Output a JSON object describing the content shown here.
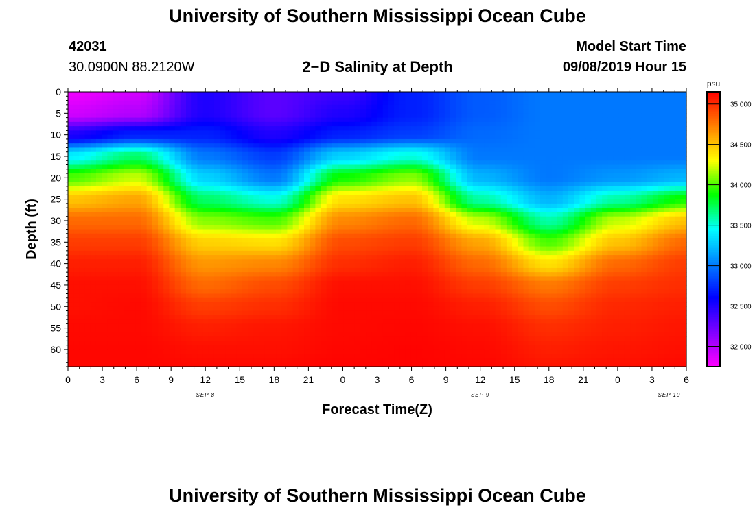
{
  "header": {
    "title": "University of Southern Mississippi Ocean Cube",
    "station_id": "42031",
    "station_coords": "30.0900N 88.2120W",
    "plot_title": "2−D Salinity at Depth",
    "model_label": "Model Start Time",
    "model_time": "09/08/2019 Hour 15"
  },
  "footer": {
    "title": "University of Southern Mississippi Ocean Cube"
  },
  "chart_data": {
    "type": "heatmap",
    "title": "2−D Salinity at Depth",
    "xlabel": "Forecast Time(Z)",
    "ylabel": "Depth (ft)",
    "x_hours_range": [
      0,
      54
    ],
    "x_hour_ticks": [
      0,
      3,
      6,
      9,
      12,
      15,
      18,
      21,
      24,
      27,
      30,
      33,
      36,
      39,
      42,
      45,
      48,
      51,
      54
    ],
    "x_tick_labels": [
      "0",
      "3",
      "6",
      "9",
      "12",
      "15",
      "18",
      "21",
      "0",
      "3",
      "6",
      "9",
      "12",
      "15",
      "18",
      "21",
      "0",
      "3",
      "6"
    ],
    "x_date_labels": [
      {
        "hour": 12,
        "label": "SEP 8"
      },
      {
        "hour": 36,
        "label": "SEP 9"
      },
      {
        "hour": 52.5,
        "label": "SEP 10"
      }
    ],
    "y_range": [
      0,
      64
    ],
    "y_ticks": [
      0,
      5,
      10,
      15,
      20,
      25,
      30,
      35,
      40,
      45,
      50,
      55,
      60
    ],
    "colorbar": {
      "units": "psu",
      "range": [
        31.75,
        35.15
      ],
      "tick_values": [
        32.0,
        32.5,
        33.0,
        33.5,
        34.0,
        34.5,
        35.0
      ],
      "tick_labels": [
        "32.000",
        "32.500",
        "33.000",
        "33.500",
        "34.000",
        "34.500",
        "35.000"
      ],
      "colors": [
        "#ff00ff",
        "#8000ff",
        "#0000ff",
        "#0080ff",
        "#00ffff",
        "#00ff00",
        "#ffff00",
        "#ff8000",
        "#ff0000"
      ]
    },
    "grid": {
      "x_hours": [
        0,
        6,
        12,
        18,
        24,
        30,
        36,
        42,
        48,
        54
      ],
      "depths_ft": [
        0,
        5,
        10,
        15,
        20,
        25,
        30,
        35,
        40,
        45,
        50,
        55,
        60,
        64
      ],
      "salinity_psu": [
        [
          31.8,
          31.9,
          32.5,
          32.3,
          32.4,
          32.7,
          32.9,
          33.0,
          33.0,
          33.0
        ],
        [
          31.9,
          32.0,
          32.5,
          32.3,
          32.5,
          32.7,
          32.9,
          33.0,
          33.0,
          33.0
        ],
        [
          32.5,
          32.7,
          32.7,
          32.5,
          32.7,
          32.8,
          32.95,
          33.0,
          33.0,
          33.0
        ],
        [
          33.4,
          33.7,
          33.0,
          32.8,
          33.3,
          33.5,
          33.0,
          33.0,
          33.0,
          33.0
        ],
        [
          34.0,
          34.2,
          33.3,
          33.0,
          33.9,
          34.1,
          33.2,
          33.0,
          33.1,
          33.2
        ],
        [
          34.5,
          34.6,
          33.7,
          33.5,
          34.4,
          34.5,
          33.6,
          33.2,
          33.6,
          33.9
        ],
        [
          34.8,
          34.8,
          34.1,
          34.0,
          34.7,
          34.8,
          34.2,
          33.6,
          34.2,
          34.5
        ],
        [
          34.95,
          34.95,
          34.45,
          34.4,
          34.9,
          34.95,
          34.6,
          34.0,
          34.5,
          34.8
        ],
        [
          35.05,
          35.05,
          34.65,
          34.7,
          35.0,
          35.05,
          34.8,
          34.4,
          34.8,
          34.95
        ],
        [
          35.1,
          35.1,
          34.8,
          34.9,
          35.1,
          35.1,
          34.95,
          34.75,
          34.95,
          35.0
        ],
        [
          35.1,
          35.12,
          34.95,
          35.0,
          35.12,
          35.12,
          35.05,
          34.9,
          35.02,
          35.05
        ],
        [
          35.12,
          35.12,
          35.05,
          35.08,
          35.12,
          35.13,
          35.1,
          35.0,
          35.05,
          35.08
        ],
        [
          35.13,
          35.13,
          35.1,
          35.1,
          35.13,
          35.14,
          35.12,
          35.05,
          35.08,
          35.1
        ],
        [
          35.13,
          35.13,
          35.12,
          35.12,
          35.14,
          35.14,
          35.13,
          35.08,
          35.1,
          35.12
        ]
      ]
    }
  }
}
